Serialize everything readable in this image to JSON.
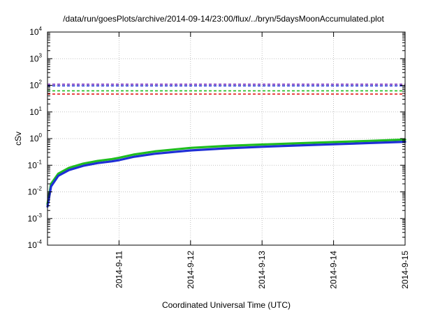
{
  "chart_data": {
    "type": "line",
    "title": "/data/run/goesPlots/archive/2014-09-14/23:00/flux/../bryn/5daysMoonAccumulated.plot",
    "xlabel": "Coordinated Universal Time (UTC)",
    "ylabel": "cSv",
    "yscale": "log",
    "ylim_exponents": [
      -4,
      4
    ],
    "y_tick_base": "10",
    "y_tick_exponents": [
      "-4",
      "-3",
      "-2",
      "-1",
      "0",
      "1",
      "2",
      "3",
      "4"
    ],
    "x_tick_labels": [
      "2014-9-11",
      "2014-9-12",
      "2014-9-13",
      "2014-9-14",
      "2014-9-15"
    ],
    "xlim_days": [
      0,
      5
    ],
    "x_tick_positions_days": [
      1,
      2,
      3,
      4,
      5
    ],
    "grid": true,
    "thresholds": [
      {
        "y": 110,
        "color": "#7b2fbe"
      },
      {
        "y": 95,
        "color": "#1f2fd6"
      },
      {
        "y": 62,
        "color": "#1fbd1f"
      },
      {
        "y": 47,
        "color": "#e21a1a"
      }
    ],
    "series": [
      {
        "color": "#1fbd1f",
        "x": [
          0,
          0.05,
          0.15,
          0.3,
          0.5,
          0.7,
          0.9,
          1.0,
          1.2,
          1.5,
          2.0,
          2.5,
          3.0,
          3.5,
          4.0,
          4.5,
          5.0
        ],
        "y": [
          0.0035,
          0.02,
          0.048,
          0.08,
          0.115,
          0.145,
          0.17,
          0.19,
          0.25,
          0.33,
          0.45,
          0.53,
          0.6,
          0.67,
          0.74,
          0.82,
          0.92
        ]
      },
      {
        "color": "#1f2fd6",
        "x": [
          0,
          0.05,
          0.15,
          0.3,
          0.5,
          0.7,
          0.9,
          1.0,
          1.2,
          1.5,
          2.0,
          2.5,
          3.0,
          3.5,
          4.0,
          4.5,
          5.0
        ],
        "y": [
          0.0028,
          0.016,
          0.04,
          0.066,
          0.095,
          0.12,
          0.14,
          0.155,
          0.205,
          0.27,
          0.36,
          0.43,
          0.49,
          0.55,
          0.61,
          0.68,
          0.76
        ]
      }
    ]
  }
}
